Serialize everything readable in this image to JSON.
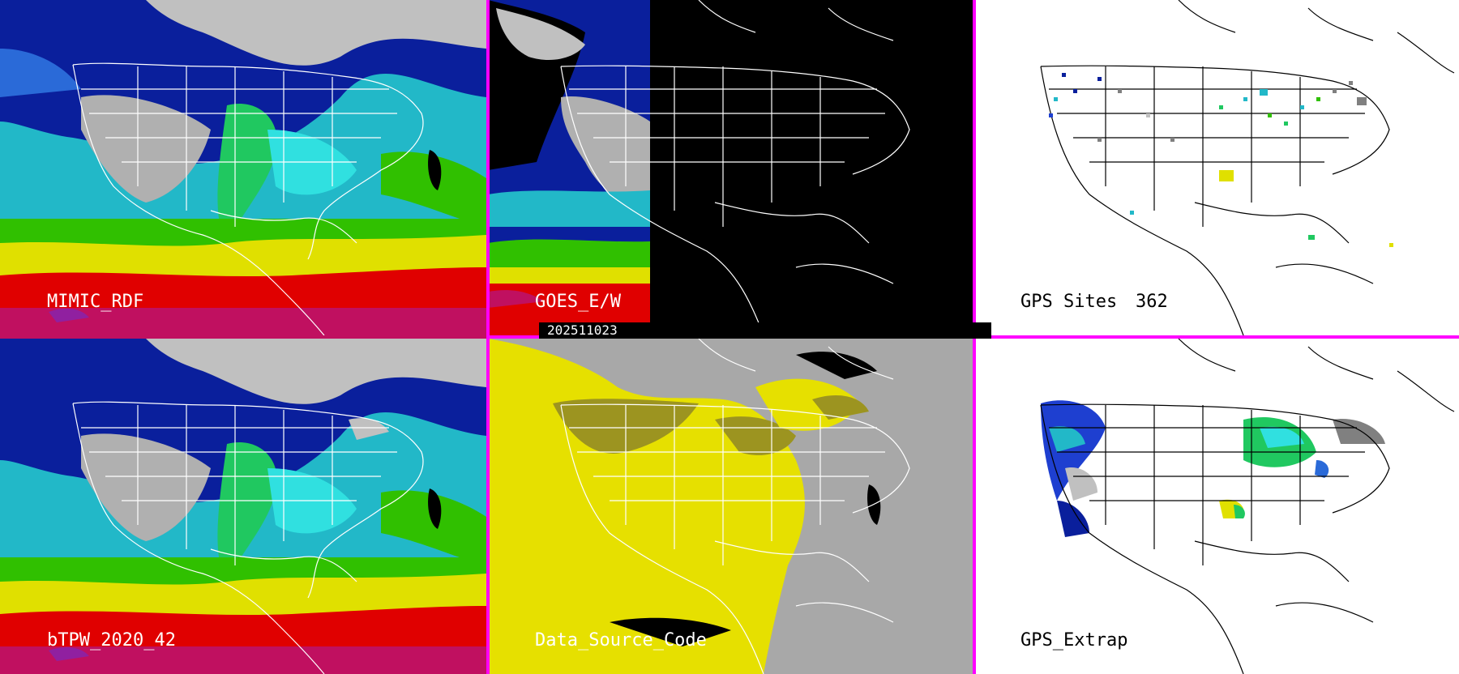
{
  "colors": {
    "separator": "#ff00ff",
    "light_label": "#ffffff",
    "dark_label": "#000000",
    "no_data": "#000000",
    "blank_map": "#ffffff",
    "data_source_background": "#a8a8a8",
    "data_source_yellow": "#e6e000",
    "data_source_olive": "#9c9420"
  },
  "palette": [
    "#ffffff",
    "#c0c0c0",
    "#808080",
    "#0a1f9c",
    "#1e3fd0",
    "#2a6ad8",
    "#22b8c8",
    "#30e0e0",
    "#20c860",
    "#30c000",
    "#e0e000",
    "#e08000",
    "#e00000",
    "#c01060",
    "#9020a0"
  ],
  "panels": [
    {
      "id": "mimic-rdf",
      "label": "MIMIC_RDF",
      "label_color": "light",
      "theme": "tpw"
    },
    {
      "id": "goes-ew",
      "label": "GOES_E/W",
      "label_color": "light",
      "theme": "goes",
      "timestamp": "202511023"
    },
    {
      "id": "gps-sites",
      "label": "GPS Sites",
      "count": "362",
      "label_color": "dark",
      "theme": "gps-sites"
    },
    {
      "id": "btpw-2020-42",
      "label": "bTPW_2020_42",
      "label_color": "light",
      "theme": "tpw"
    },
    {
      "id": "data-source-code",
      "label": "Data_Source_Code",
      "label_color": "light",
      "theme": "datasource"
    },
    {
      "id": "gps-extrap",
      "label": "GPS_Extrap",
      "label_color": "dark",
      "theme": "gps-extrap"
    }
  ]
}
